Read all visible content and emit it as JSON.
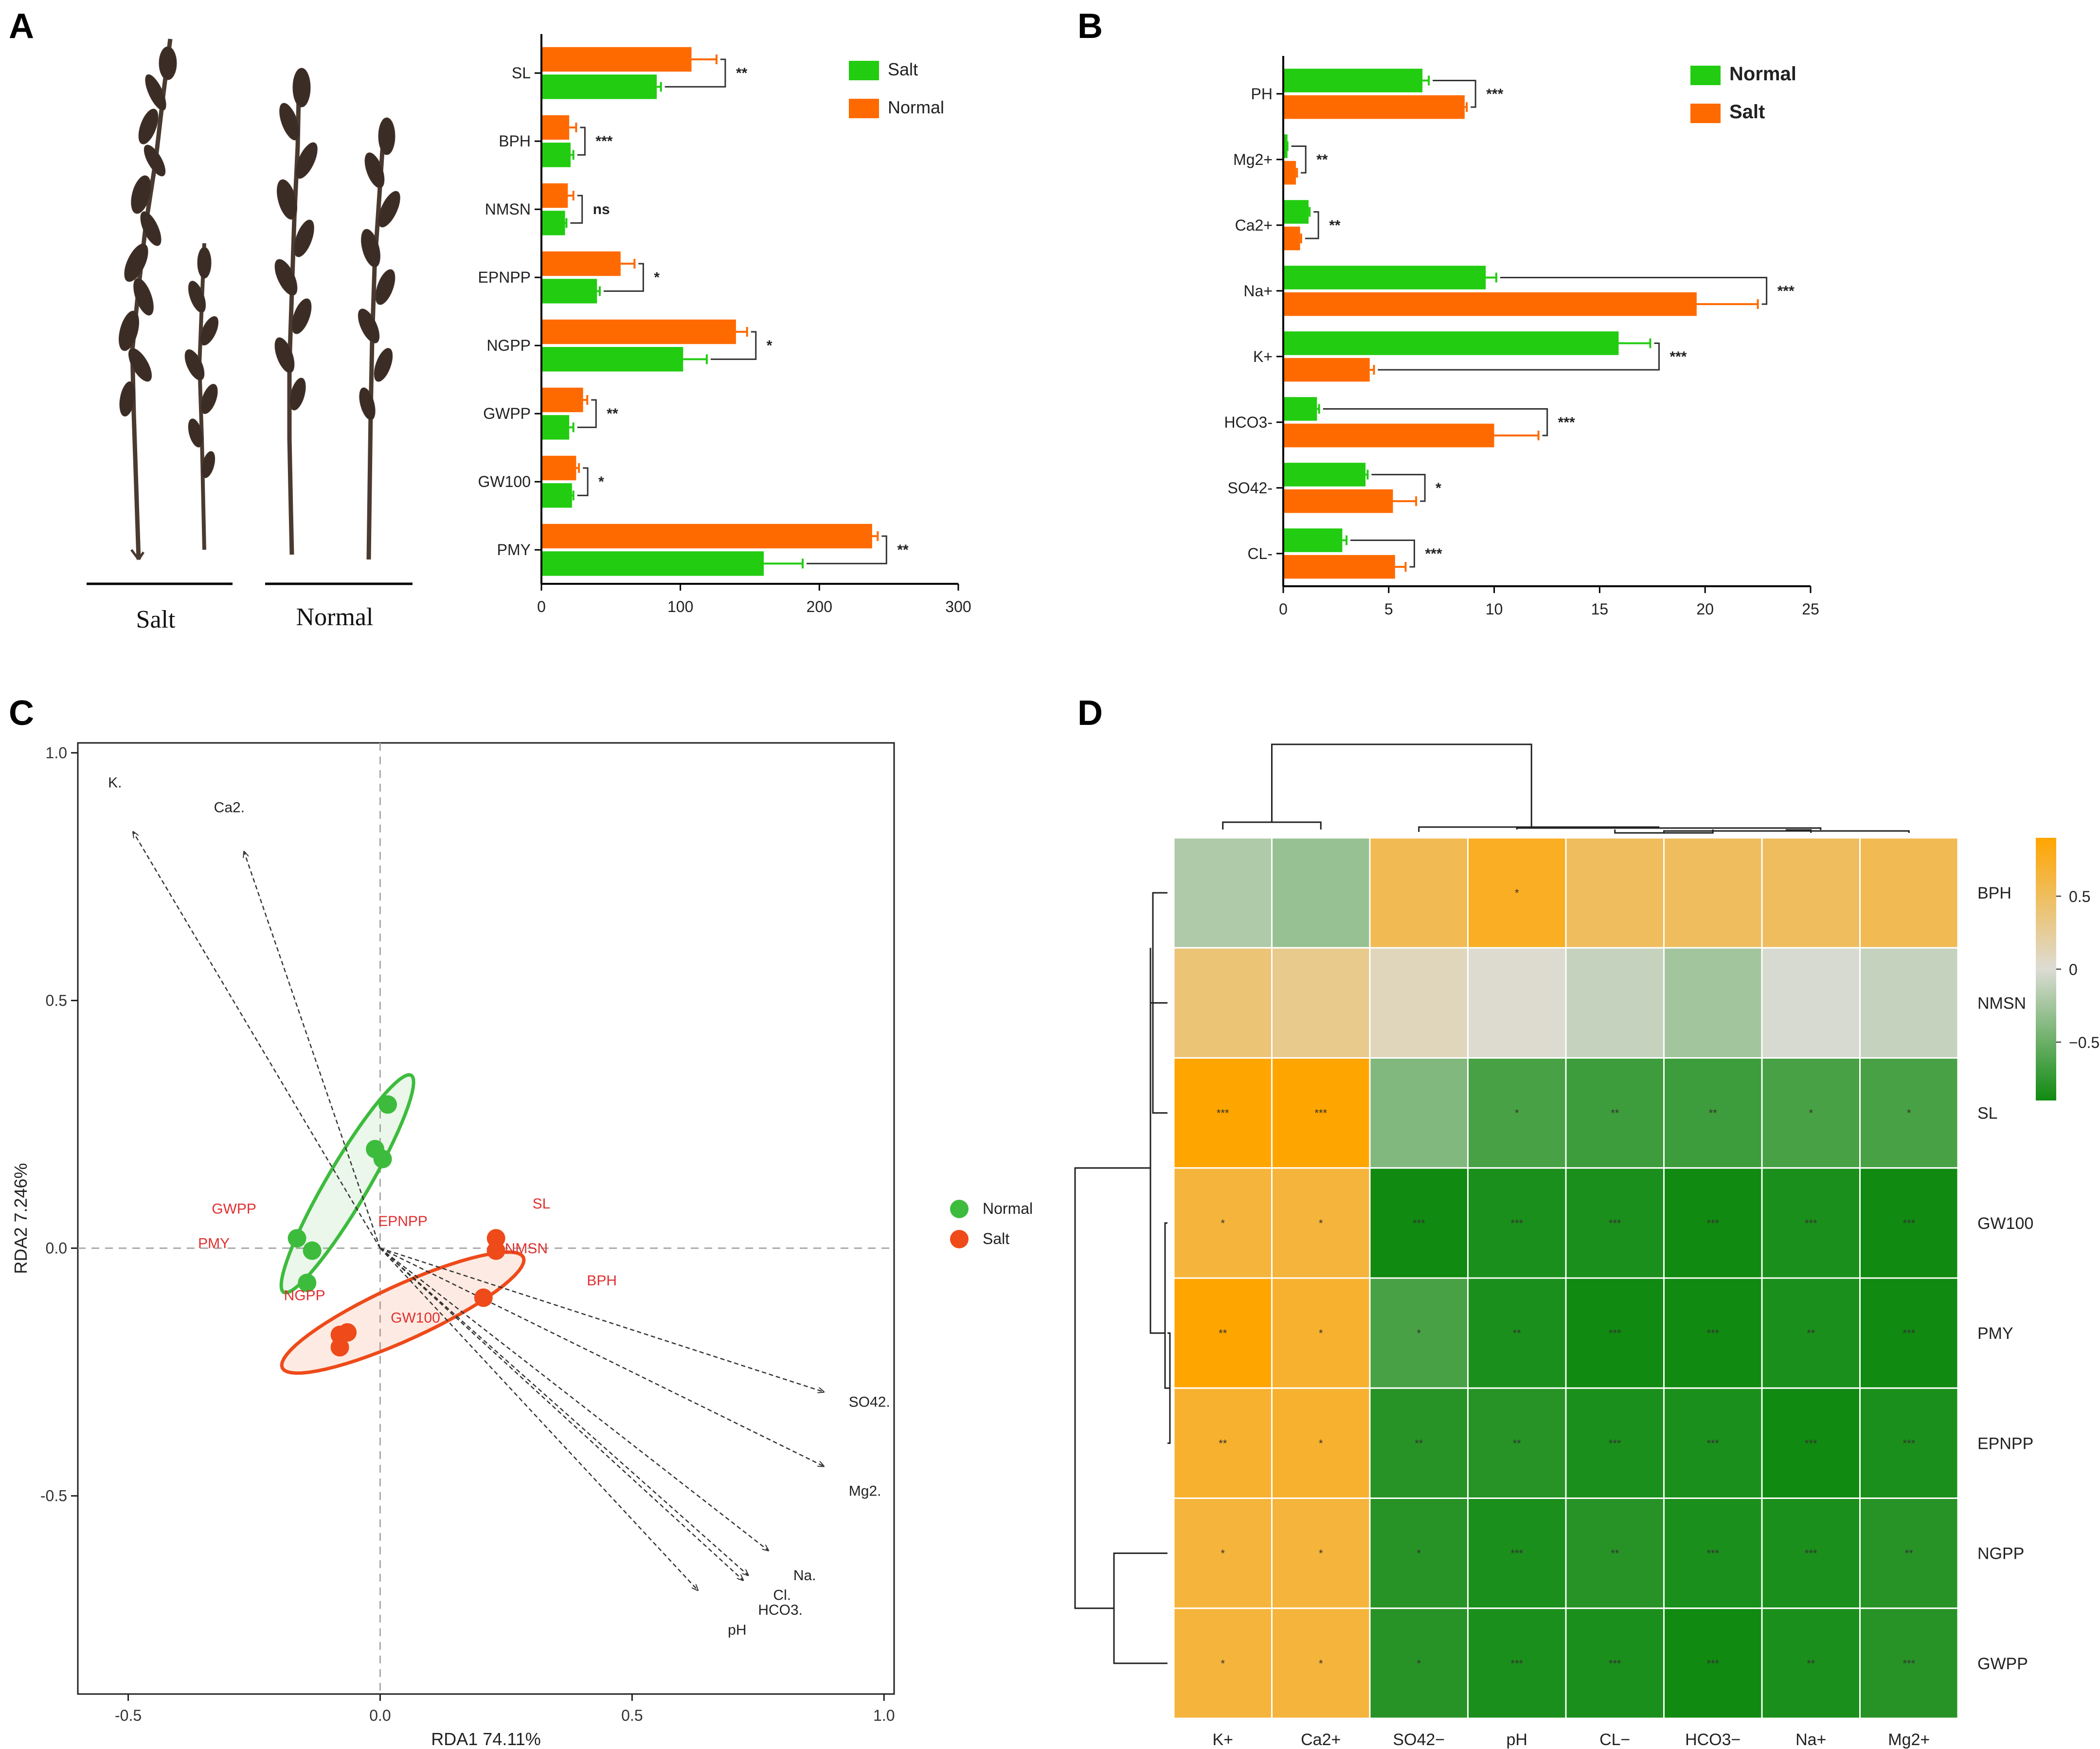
{
  "panels": [
    {
      "letter": "A"
    },
    {
      "letter": "B"
    },
    {
      "letter": "C"
    },
    {
      "letter": "D"
    }
  ],
  "chart_data": [
    {
      "panel": "A",
      "type": "bar",
      "orientation": "horizontal",
      "categories": [
        "SL",
        "BPH",
        "NMSN",
        "EPNPP",
        "NGPP",
        "GWPP",
        "GW100",
        "PMY"
      ],
      "series": [
        {
          "name": "Salt",
          "color": "#22cc11",
          "values": [
            83,
            21,
            17,
            40,
            102,
            20,
            22,
            160
          ],
          "errors": [
            3,
            2,
            1,
            2,
            17,
            3,
            1,
            28
          ]
        },
        {
          "name": "Normal",
          "color": "#ff6a00",
          "values": [
            108,
            20,
            19,
            57,
            140,
            30,
            25,
            238
          ],
          "errors": [
            18,
            5,
            4,
            10,
            8,
            3,
            2,
            4
          ]
        }
      ],
      "significance": [
        "**",
        "***",
        "ns",
        "*",
        "*",
        "**",
        "*",
        "**"
      ],
      "xlim": [
        0,
        300
      ],
      "xticks": [
        "0",
        "100",
        "200",
        "300"
      ],
      "photo_labels": [
        "Salt",
        "Normal"
      ]
    },
    {
      "panel": "B",
      "type": "bar",
      "orientation": "horizontal",
      "categories": [
        "PH",
        "Mg2+",
        "Ca2+",
        "Na+",
        "K+",
        "HCO3-",
        "SO42-",
        "CL-"
      ],
      "series": [
        {
          "name": "Normal",
          "color": "#22cc11",
          "values": [
            6.6,
            0.2,
            1.2,
            9.6,
            15.9,
            1.6,
            3.9,
            2.8
          ],
          "errors": [
            0.3,
            0,
            0.05,
            0.5,
            1.5,
            0.1,
            0.1,
            0.2
          ]
        },
        {
          "name": "Salt",
          "color": "#ff6a00",
          "values": [
            8.6,
            0.6,
            0.8,
            19.6,
            4.1,
            10,
            5.2,
            5.3
          ],
          "errors": [
            0.1,
            0.05,
            0.05,
            2.9,
            0.2,
            2.1,
            1.1,
            0.5
          ]
        }
      ],
      "significance": [
        "***",
        "**",
        "**",
        "***",
        "***",
        "***",
        "*",
        "***"
      ],
      "xlim": [
        0,
        25
      ],
      "xticks": [
        "0",
        "5",
        "10",
        "15",
        "20",
        "25"
      ]
    },
    {
      "panel": "C",
      "type": "scatter",
      "title": "",
      "xlabel": "RDA1 74.11%",
      "ylabel": "RDA2 7.246%",
      "xlim": [
        -0.6,
        1.02
      ],
      "ylim": [
        -0.9,
        1.02
      ],
      "xticks": [
        "-0.5",
        "0.0",
        "0.5",
        "1.0"
      ],
      "yticks": [
        "-0.5",
        "0.0",
        "0.5",
        "1.0"
      ],
      "series": [
        {
          "name": "Normal",
          "color": "#3dbb3d",
          "points": [
            [
              0.015,
              0.29
            ],
            [
              -0.01,
              0.2
            ],
            [
              0.005,
              0.18
            ],
            [
              -0.165,
              0.02
            ],
            [
              -0.135,
              -0.005
            ],
            [
              -0.145,
              -0.07
            ]
          ],
          "ellipse": {
            "cx": -0.065,
            "cy": 0.13,
            "rx": 0.46,
            "ry": 0.075,
            "angle_deg": 60
          }
        },
        {
          "name": "Salt",
          "color": "#ee4a1a",
          "points": [
            [
              -0.08,
              -0.175
            ],
            [
              -0.065,
              -0.17
            ],
            [
              -0.08,
              -0.2
            ],
            [
              0.205,
              -0.1
            ],
            [
              0.23,
              0.02
            ],
            [
              0.23,
              -0.005
            ]
          ],
          "ellipse": {
            "cx": 0.045,
            "cy": -0.13,
            "rx": 0.48,
            "ry": 0.1,
            "angle_deg": 25
          }
        }
      ],
      "arrows": [
        {
          "label": "K.",
          "x": -0.49,
          "y": 0.84,
          "lx": -0.54,
          "ly": 0.93
        },
        {
          "label": "Ca2.",
          "x": -0.27,
          "y": 0.8,
          "lx": -0.33,
          "ly": 0.88
        },
        {
          "label": "SO42.",
          "x": 0.88,
          "y": -0.29,
          "lx": 0.93,
          "ly": -0.32
        },
        {
          "label": "Mg2.",
          "x": 0.88,
          "y": -0.44,
          "lx": 0.93,
          "ly": -0.5
        },
        {
          "label": "Na.",
          "x": 0.77,
          "y": -0.61,
          "lx": 0.82,
          "ly": -0.67
        },
        {
          "label": "Cl.",
          "x": 0.73,
          "y": -0.66,
          "lx": 0.78,
          "ly": -0.71
        },
        {
          "label": "HCO3.",
          "x": 0.72,
          "y": -0.67,
          "lx": 0.75,
          "ly": -0.74
        },
        {
          "label": "pH",
          "x": 0.63,
          "y": -0.69,
          "lx": 0.69,
          "ly": -0.78
        }
      ],
      "species": [
        {
          "label": "GWPP",
          "x": -0.29,
          "y": 0.07,
          "sx": -0.275,
          "sy": 0.035
        },
        {
          "label": "PMY",
          "x": -0.33,
          "y": 0.0,
          "sx": -0.32,
          "sy": 0.02
        },
        {
          "label": "EPNPP",
          "x": 0.045,
          "y": 0.045,
          "sx": 0.06,
          "sy": 0.065
        },
        {
          "label": "SL",
          "x": 0.32,
          "y": 0.08,
          "sx": 0.345,
          "sy": 0.1
        },
        {
          "label": "NMSN",
          "x": 0.29,
          "y": -0.01,
          "sx": 0.305,
          "sy": 0.015
        },
        {
          "label": "NGPP",
          "x": -0.15,
          "y": -0.105,
          "sx": -0.175,
          "sy": -0.125
        },
        {
          "label": "GW100",
          "x": 0.07,
          "y": -0.15,
          "sx": 0.09,
          "sy": -0.13
        },
        {
          "label": "BPH",
          "x": 0.44,
          "y": -0.075,
          "sx": 0.415,
          "sy": -0.1
        }
      ]
    },
    {
      "panel": "D",
      "type": "heatmap",
      "columns": [
        "K+",
        "Ca2+",
        "SO42−",
        "pH",
        "CL−",
        "HCO3−",
        "Na+",
        "Mg2+"
      ],
      "rows": [
        "BPH",
        "NMSN",
        "SL",
        "GW100",
        "PMY",
        "EPNPP",
        "NGPP",
        "GWPP"
      ],
      "values": [
        [
          -0.2,
          -0.3,
          0.55,
          0.75,
          0.5,
          0.5,
          0.5,
          0.55
        ],
        [
          0.4,
          0.3,
          0.1,
          0.02,
          -0.1,
          -0.25,
          -0.02,
          -0.1
        ],
        [
          0.9,
          0.9,
          -0.4,
          -0.65,
          -0.7,
          -0.7,
          -0.65,
          -0.65
        ],
        [
          0.65,
          0.65,
          -0.95,
          -0.85,
          -0.85,
          -0.9,
          -0.85,
          -0.9
        ],
        [
          0.9,
          0.7,
          -0.65,
          -0.85,
          -0.97,
          -0.97,
          -0.85,
          -0.92
        ],
        [
          0.7,
          0.7,
          -0.8,
          -0.8,
          -0.85,
          -0.85,
          -0.9,
          -0.85
        ],
        [
          0.65,
          0.65,
          -0.8,
          -0.85,
          -0.8,
          -0.85,
          -0.85,
          -0.8
        ],
        [
          0.65,
          0.65,
          -0.8,
          -0.85,
          -0.85,
          -0.9,
          -0.85,
          -0.8
        ]
      ],
      "stars": [
        [
          "",
          "",
          "",
          "*",
          "",
          "",
          "",
          ""
        ],
        [
          "",
          "",
          "",
          "",
          "",
          "",
          "",
          ""
        ],
        [
          "***",
          "***",
          "",
          "*",
          "**",
          "**",
          "*",
          "*"
        ],
        [
          "*",
          "*",
          "***",
          "***",
          "***",
          "***",
          "***",
          "***"
        ],
        [
          "**",
          "*",
          "*",
          "**",
          "***",
          "***",
          "**",
          "***"
        ],
        [
          "**",
          "*",
          "**",
          "**",
          "***",
          "***",
          "***",
          "***"
        ],
        [
          "*",
          "*",
          "*",
          "***",
          "**",
          "***",
          "***",
          "**"
        ],
        [
          "*",
          "*",
          "*",
          "***",
          "***",
          "***",
          "**",
          "***"
        ]
      ],
      "colorbar": {
        "ticks": [
          "0.5",
          "0",
          "−0.5"
        ],
        "min": -0.9,
        "max": 0.9,
        "colors": [
          "#108a10",
          "#dcdcd4",
          "#ffa500"
        ]
      }
    }
  ]
}
